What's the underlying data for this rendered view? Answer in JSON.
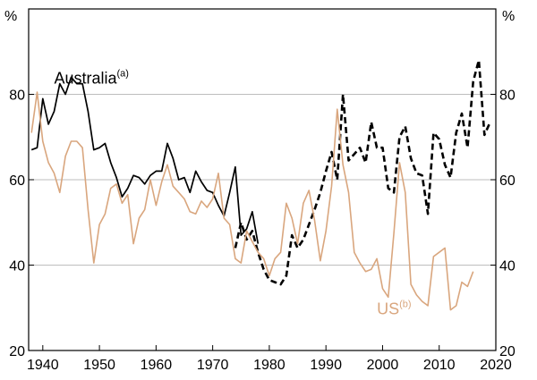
{
  "chart_data": {
    "type": "line",
    "title": "",
    "unit_left": "%",
    "unit_right": "%",
    "xlim": [
      1937.5,
      2020
    ],
    "ylim": [
      20,
      100
    ],
    "x_ticks": [
      1940,
      1950,
      1960,
      1970,
      1980,
      1990,
      2000,
      2010,
      2020
    ],
    "y_ticks": [
      20,
      40,
      60,
      80
    ],
    "y_gridlines": [
      40,
      60,
      80
    ],
    "grid": true,
    "colors": {
      "australia": "#000000",
      "us": "#D9A67E",
      "grid": "#bdbdbd",
      "frame": "#000000"
    },
    "series": [
      {
        "name": "Australia",
        "name_sup": "(a)",
        "color": "#000000",
        "style": "solid",
        "points": [
          [
            1938,
            67
          ],
          [
            1939,
            67.5
          ],
          [
            1940,
            79
          ],
          [
            1941,
            73
          ],
          [
            1942,
            76
          ],
          [
            1943,
            82.5
          ],
          [
            1944,
            80
          ],
          [
            1945,
            84
          ],
          [
            1946,
            82.5
          ],
          [
            1947,
            82.5
          ],
          [
            1948,
            76
          ],
          [
            1949,
            67
          ],
          [
            1950,
            67.5
          ],
          [
            1951,
            68.5
          ],
          [
            1952,
            64
          ],
          [
            1953,
            60.5
          ],
          [
            1954,
            56
          ],
          [
            1955,
            58
          ],
          [
            1956,
            61
          ],
          [
            1957,
            60.5
          ],
          [
            1958,
            59
          ],
          [
            1959,
            61
          ],
          [
            1960,
            62
          ],
          [
            1961,
            62
          ],
          [
            1962,
            68.5
          ],
          [
            1963,
            65
          ],
          [
            1964,
            60
          ],
          [
            1965,
            60.5
          ],
          [
            1966,
            57
          ],
          [
            1967,
            62
          ],
          [
            1968,
            59.5
          ],
          [
            1969,
            57.5
          ],
          [
            1970,
            57
          ],
          [
            1971,
            54
          ],
          [
            1972,
            51.5
          ],
          [
            1973,
            57
          ],
          [
            1974,
            63
          ],
          [
            1975,
            47
          ],
          [
            1976,
            48.5
          ],
          [
            1977,
            52.5
          ],
          [
            1978,
            45
          ]
        ]
      },
      {
        "name": "Australia",
        "color": "#000000",
        "style": "dashed",
        "points": [
          [
            1974,
            44
          ],
          [
            1975,
            50
          ],
          [
            1976,
            46
          ],
          [
            1977,
            48
          ],
          [
            1978,
            43
          ],
          [
            1979,
            39
          ],
          [
            1980,
            36.5
          ],
          [
            1981,
            36
          ],
          [
            1982,
            35.5
          ],
          [
            1983,
            37.5
          ],
          [
            1984,
            47
          ],
          [
            1985,
            44
          ],
          [
            1986,
            46
          ],
          [
            1987,
            49.5
          ],
          [
            1988,
            53
          ],
          [
            1989,
            57
          ],
          [
            1990,
            62
          ],
          [
            1991,
            66.5
          ],
          [
            1992,
            60
          ],
          [
            1993,
            80
          ],
          [
            1994,
            64.5
          ],
          [
            1995,
            66
          ],
          [
            1996,
            67.5
          ],
          [
            1997,
            64
          ],
          [
            1998,
            73.5
          ],
          [
            1999,
            67.5
          ],
          [
            2000,
            67.5
          ],
          [
            2001,
            58
          ],
          [
            2002,
            57
          ],
          [
            2003,
            70
          ],
          [
            2004,
            72.5
          ],
          [
            2005,
            65
          ],
          [
            2006,
            61.5
          ],
          [
            2007,
            61
          ],
          [
            2008,
            52
          ],
          [
            2009,
            71
          ],
          [
            2010,
            69.5
          ],
          [
            2011,
            63.5
          ],
          [
            2012,
            60.5
          ],
          [
            2013,
            71
          ],
          [
            2014,
            75.5
          ],
          [
            2015,
            67.5
          ],
          [
            2016,
            83
          ],
          [
            2017,
            88
          ],
          [
            2018,
            70.5
          ],
          [
            2019,
            73.5
          ]
        ]
      },
      {
        "name": "US",
        "name_sup": "(b)",
        "color": "#D9A67E",
        "style": "solid",
        "points": [
          [
            1938,
            71
          ],
          [
            1939,
            80.5
          ],
          [
            1940,
            69
          ],
          [
            1941,
            64
          ],
          [
            1942,
            61.5
          ],
          [
            1943,
            57
          ],
          [
            1944,
            65.5
          ],
          [
            1945,
            69
          ],
          [
            1946,
            69
          ],
          [
            1947,
            67.5
          ],
          [
            1948,
            53
          ],
          [
            1949,
            40.5
          ],
          [
            1950,
            49.5
          ],
          [
            1951,
            52
          ],
          [
            1952,
            58
          ],
          [
            1953,
            59
          ],
          [
            1954,
            54.5
          ],
          [
            1955,
            56.5
          ],
          [
            1956,
            45
          ],
          [
            1957,
            51
          ],
          [
            1958,
            53
          ],
          [
            1959,
            60
          ],
          [
            1960,
            54
          ],
          [
            1961,
            59.5
          ],
          [
            1962,
            63.5
          ],
          [
            1963,
            58.5
          ],
          [
            1964,
            57
          ],
          [
            1965,
            55.5
          ],
          [
            1966,
            52.5
          ],
          [
            1967,
            52
          ],
          [
            1968,
            55
          ],
          [
            1969,
            53.5
          ],
          [
            1970,
            55.5
          ],
          [
            1971,
            61.5
          ],
          [
            1972,
            51
          ],
          [
            1973,
            49.5
          ],
          [
            1974,
            41.5
          ],
          [
            1975,
            40.5
          ],
          [
            1976,
            48
          ],
          [
            1977,
            45.5
          ],
          [
            1978,
            43
          ],
          [
            1979,
            41.5
          ],
          [
            1980,
            37.5
          ],
          [
            1981,
            41.5
          ],
          [
            1982,
            43
          ],
          [
            1983,
            54.5
          ],
          [
            1984,
            51
          ],
          [
            1985,
            45
          ],
          [
            1986,
            54.5
          ],
          [
            1987,
            57.5
          ],
          [
            1988,
            50.5
          ],
          [
            1989,
            41
          ],
          [
            1990,
            48
          ],
          [
            1991,
            58.5
          ],
          [
            1992,
            76.5
          ],
          [
            1993,
            63.5
          ],
          [
            1994,
            57
          ],
          [
            1995,
            43
          ],
          [
            1996,
            40.5
          ],
          [
            1997,
            38.5
          ],
          [
            1998,
            39
          ],
          [
            1999,
            41.5
          ],
          [
            2000,
            34.5
          ],
          [
            2001,
            32.5
          ],
          [
            2002,
            47.5
          ],
          [
            2003,
            64
          ],
          [
            2004,
            57
          ],
          [
            2005,
            35.5
          ],
          [
            2006,
            33
          ],
          [
            2007,
            31.5
          ],
          [
            2008,
            30.5
          ],
          [
            2009,
            42
          ],
          [
            2010,
            43
          ],
          [
            2011,
            44
          ],
          [
            2012,
            29.5
          ],
          [
            2013,
            30.5
          ],
          [
            2014,
            36
          ],
          [
            2015,
            35
          ],
          [
            2016,
            38.5
          ]
        ]
      }
    ],
    "annotations": [
      {
        "text": "Australia",
        "sup": "(a)",
        "series": 0,
        "x": 1942,
        "y": 82.5
      },
      {
        "text": "US",
        "sup": "(b)",
        "series": 2,
        "x": 1999,
        "y": 28.5
      }
    ]
  }
}
